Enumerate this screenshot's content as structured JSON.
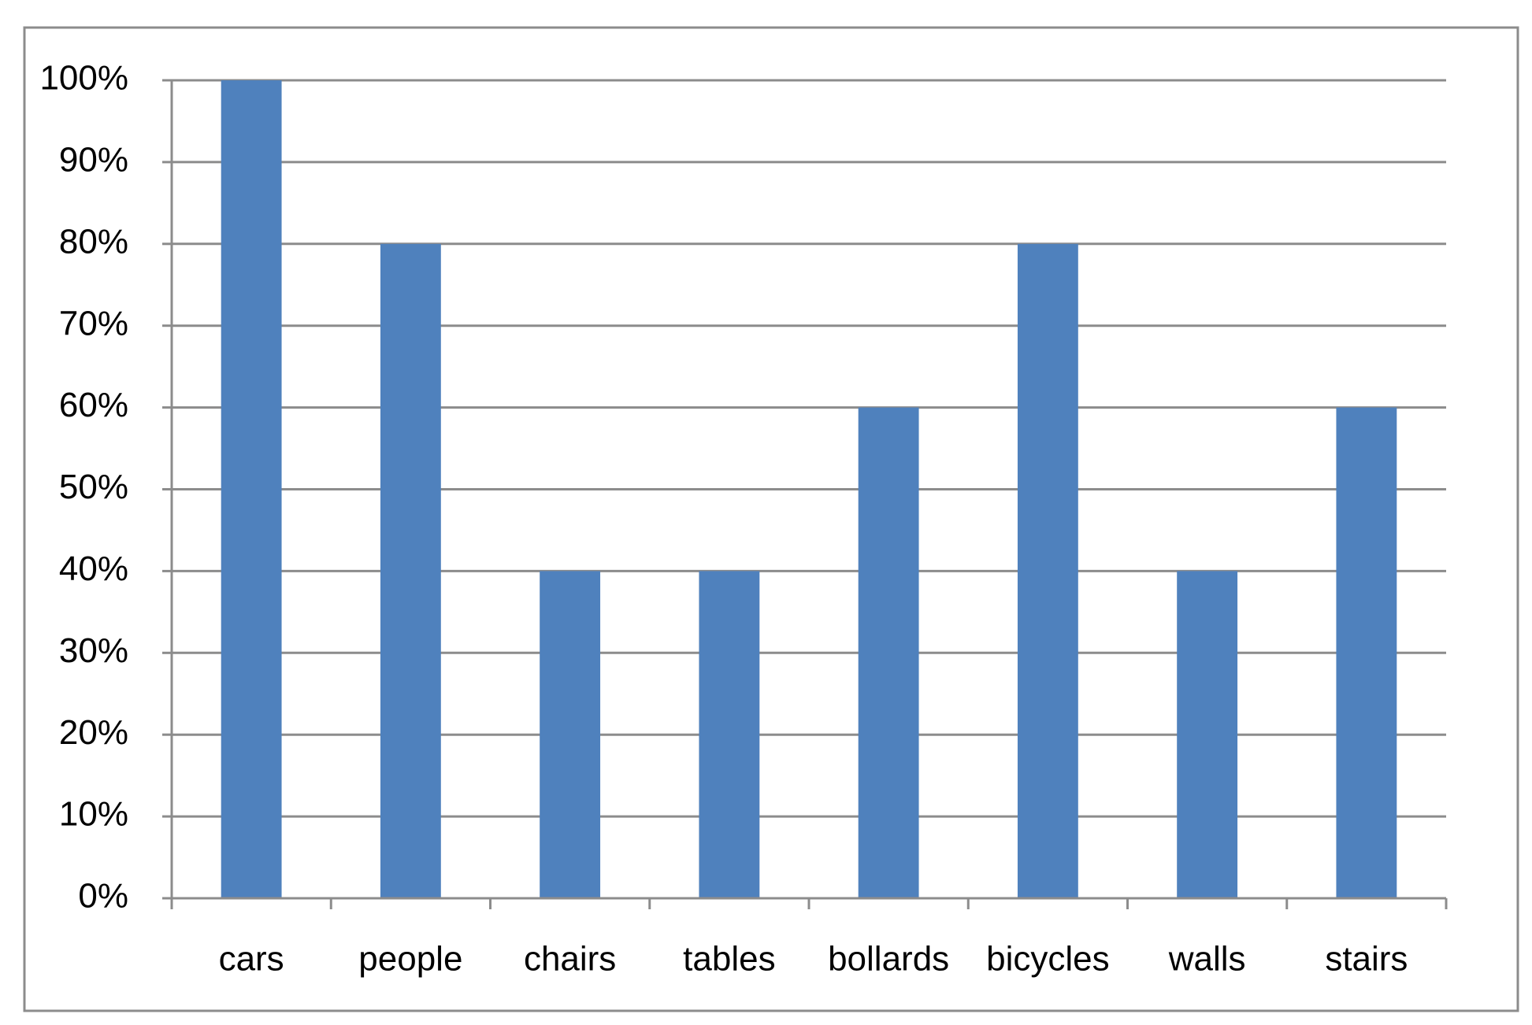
{
  "chart_data": {
    "type": "bar",
    "categories": [
      "cars",
      "people",
      "chairs",
      "tables",
      "bollards",
      "bicycles",
      "walls",
      "stairs"
    ],
    "values": [
      100,
      80,
      40,
      40,
      60,
      80,
      40,
      60
    ],
    "color": "#4f81bd",
    "ylim": [
      0,
      100
    ],
    "yticks": [
      {
        "value": 0,
        "label": "0%"
      },
      {
        "value": 10,
        "label": "10%"
      },
      {
        "value": 20,
        "label": "20%"
      },
      {
        "value": 30,
        "label": "30%"
      },
      {
        "value": 40,
        "label": "40%"
      },
      {
        "value": 50,
        "label": "50%"
      },
      {
        "value": 60,
        "label": "60%"
      },
      {
        "value": 70,
        "label": "70%"
      },
      {
        "value": 80,
        "label": "80%"
      },
      {
        "value": 90,
        "label": "90%"
      },
      {
        "value": 100,
        "label": "100%"
      }
    ],
    "grid": true
  }
}
